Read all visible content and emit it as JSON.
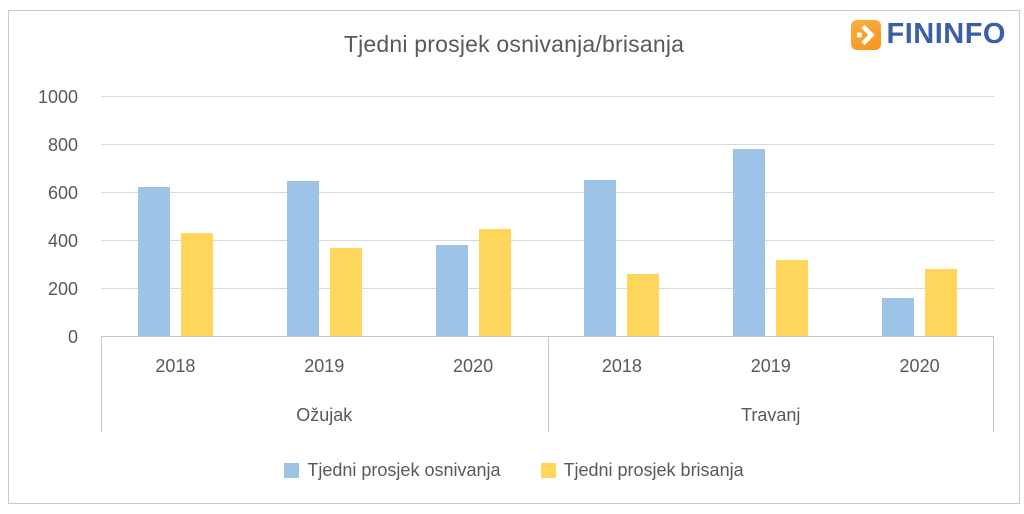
{
  "logo": {
    "text": "FININFO",
    "icon": "chevron-right-dot-icon",
    "icon_color": "#F59C20",
    "text_color": "#3A5FA8"
  },
  "colors": {
    "label_text": "#595959",
    "gridline": "#D9D9D9",
    "axis_line": "#C6C6C6",
    "frame_border": "#C9C9C9"
  },
  "chart_data": {
    "type": "bar",
    "title": "Tjedni prosjek osnivanja/brisanja",
    "groups": [
      {
        "label": "Ožujak",
        "categories": [
          "2018",
          "2019",
          "2020"
        ]
      },
      {
        "label": "Travanj",
        "categories": [
          "2018",
          "2019",
          "2020"
        ]
      }
    ],
    "series": [
      {
        "key": "osnivanja",
        "name": "Tjedni prosjek osnivanja",
        "color": "#9DC3E6",
        "values": [
          [
            620,
            645,
            380
          ],
          [
            650,
            780,
            160
          ]
        ]
      },
      {
        "key": "brisanja",
        "name": "Tjedni prosjek brisanja",
        "color": "#FFD65C",
        "values": [
          [
            430,
            365,
            445
          ],
          [
            260,
            315,
            280
          ]
        ]
      }
    ],
    "ylim": [
      0,
      1000
    ],
    "yticks": [
      0,
      200,
      400,
      600,
      800,
      1000
    ],
    "grid": true,
    "legend_position": "bottom"
  }
}
